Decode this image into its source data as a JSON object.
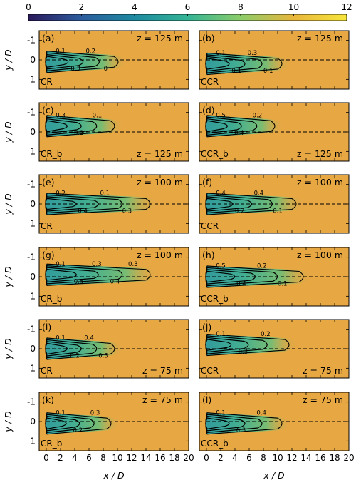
{
  "chart_data": {
    "type": "heatmap",
    "colorbar": {
      "ticks": [
        "0",
        "2",
        "4",
        "6",
        "8",
        "10",
        "12"
      ],
      "range": [
        0,
        12
      ],
      "colors": [
        "#2b1a5c",
        "#2c5c9c",
        "#1e8aa0",
        "#34b495",
        "#8ccc6a",
        "#e8b63c",
        "#f6e63c"
      ]
    },
    "xlabel": "x / D",
    "ylabel": "y / D",
    "x_ticks": [
      "0",
      "2",
      "4",
      "6",
      "8",
      "10",
      "12",
      "14",
      "16",
      "18",
      "20"
    ],
    "y_ticks": [
      "-1",
      "0",
      "1"
    ],
    "xlim": [
      -1,
      20
    ],
    "ylim": [
      -1.5,
      1.5
    ],
    "background_color": "#e7a743",
    "panels": [
      {
        "label": "(a)",
        "height": "z = 125 m",
        "case": "CR",
        "case_pos": "bottom",
        "height_pos": "top",
        "wake_length": 9.5,
        "centre_y": 0.1,
        "contour_labels": [
          "0.1",
          "0.3",
          "0.2",
          "0"
        ]
      },
      {
        "label": "(b)",
        "height": "z = 125 m",
        "case": "CCR",
        "case_pos": "bottom",
        "height_pos": "top",
        "wake_length": 10,
        "centre_y": 0.2,
        "contour_labels": [
          "0.1",
          "0.1",
          "0.3",
          "0.1"
        ]
      },
      {
        "label": "(c)",
        "height": "z = 125 m",
        "case": "CR_b",
        "case_pos": "bottom",
        "height_pos": "bottom",
        "wake_length": 9,
        "centre_y": -0.3,
        "contour_labels": [
          "0.3",
          "0.2",
          "0.1"
        ]
      },
      {
        "label": "(d)",
        "height": "z = 125 m",
        "case": "CCR_b",
        "case_pos": "bottom",
        "height_pos": "bottom",
        "wake_length": 9,
        "centre_y": -0.3,
        "contour_labels": [
          "0.5",
          "0.4",
          "0.2"
        ]
      },
      {
        "label": "(e)",
        "height": "z = 100 m",
        "case": "CR",
        "case_pos": "bottom",
        "height_pos": "top",
        "wake_length": 14,
        "centre_y": 0.0,
        "contour_labels": [
          "0.2",
          "0.4",
          "0.1",
          "0.3"
        ]
      },
      {
        "label": "(f)",
        "height": "z = 100 m",
        "case": "CCR",
        "case_pos": "bottom",
        "height_pos": "top",
        "wake_length": 12,
        "centre_y": 0.0,
        "contour_labels": [
          "0.4",
          "0.2",
          "0.4",
          "0.1"
        ]
      },
      {
        "label": "(g)",
        "height": "z = 100 m",
        "case": "CR_b",
        "case_pos": "bottom",
        "height_pos": "top",
        "wake_length": 14,
        "centre_y": -0.1,
        "contour_labels": [
          "0.1",
          "0.5",
          "0.3",
          "0.4",
          "0.3"
        ]
      },
      {
        "label": "(h)",
        "height": "z = 100 m",
        "case": "CCR_b",
        "case_pos": "bottom",
        "height_pos": "top",
        "wake_length": 13,
        "centre_y": 0.0,
        "contour_labels": [
          "0.5",
          "0.4",
          "0.2",
          "0.1"
        ]
      },
      {
        "label": "(i)",
        "height": "z = 75 m",
        "case": "CR",
        "case_pos": "bottom",
        "height_pos": "bottom",
        "wake_length": 9,
        "centre_y": 0.0,
        "contour_labels": [
          "0.1",
          "0.2",
          "0.4",
          "0.3"
        ]
      },
      {
        "label": "(j)",
        "height": "z = 75 m",
        "case": "CCR",
        "case_pos": "bottom",
        "height_pos": "bottom",
        "wake_length": 11,
        "centre_y": -0.2,
        "contour_labels": [
          "0.1",
          "0.3",
          "0.2"
        ]
      },
      {
        "label": "(k)",
        "height": "z = 75 m",
        "case": "CR_b",
        "case_pos": "bottom",
        "height_pos": "top",
        "wake_length": 8.5,
        "centre_y": 0.1,
        "contour_labels": [
          "0.1",
          "0.2",
          "0.3"
        ]
      },
      {
        "label": "(l)",
        "height": "z = 75 m",
        "case": "CCR_b",
        "case_pos": "bottom",
        "height_pos": "top",
        "wake_length": 10,
        "centre_y": 0.1,
        "contour_labels": [
          "0.1",
          "0.3",
          "0.4"
        ]
      }
    ]
  }
}
